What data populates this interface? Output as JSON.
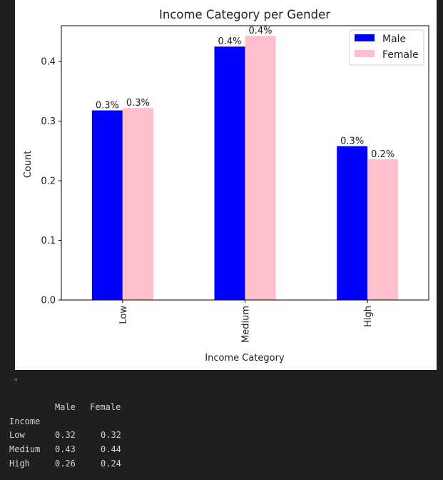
{
  "chart_data": {
    "type": "bar",
    "title": "Income Category per Gender",
    "xlabel": "Income Category",
    "ylabel": "Count",
    "categories": [
      "Low",
      "Medium",
      "High"
    ],
    "series": [
      {
        "name": "Male",
        "color": "#0000ff",
        "values": [
          0.318,
          0.425,
          0.258
        ],
        "labels": [
          "0.3%",
          "0.4%",
          "0.3%"
        ]
      },
      {
        "name": "Female",
        "color": "#ffc0cb",
        "values": [
          0.322,
          0.443,
          0.236
        ],
        "labels": [
          "0.3%",
          "0.4%",
          "0.2%"
        ]
      }
    ],
    "ylim": [
      0,
      0.46
    ],
    "yticks": [
      0.0,
      0.1,
      0.2,
      0.3,
      0.4
    ],
    "ytick_labels": [
      "0.0",
      "0.1",
      "0.2",
      "0.3",
      "0.4"
    ],
    "legend_position": "top-right",
    "grid": false
  },
  "output": {
    "scroll_arrow": "◂",
    "columns": [
      "Male",
      "Female"
    ],
    "index_name": "Income",
    "rows": [
      {
        "label": "Low",
        "male": "0.32",
        "female": "0.32"
      },
      {
        "label": "Medium",
        "male": "0.43",
        "female": "0.44"
      },
      {
        "label": "High",
        "male": "0.26",
        "female": "0.24"
      }
    ]
  }
}
